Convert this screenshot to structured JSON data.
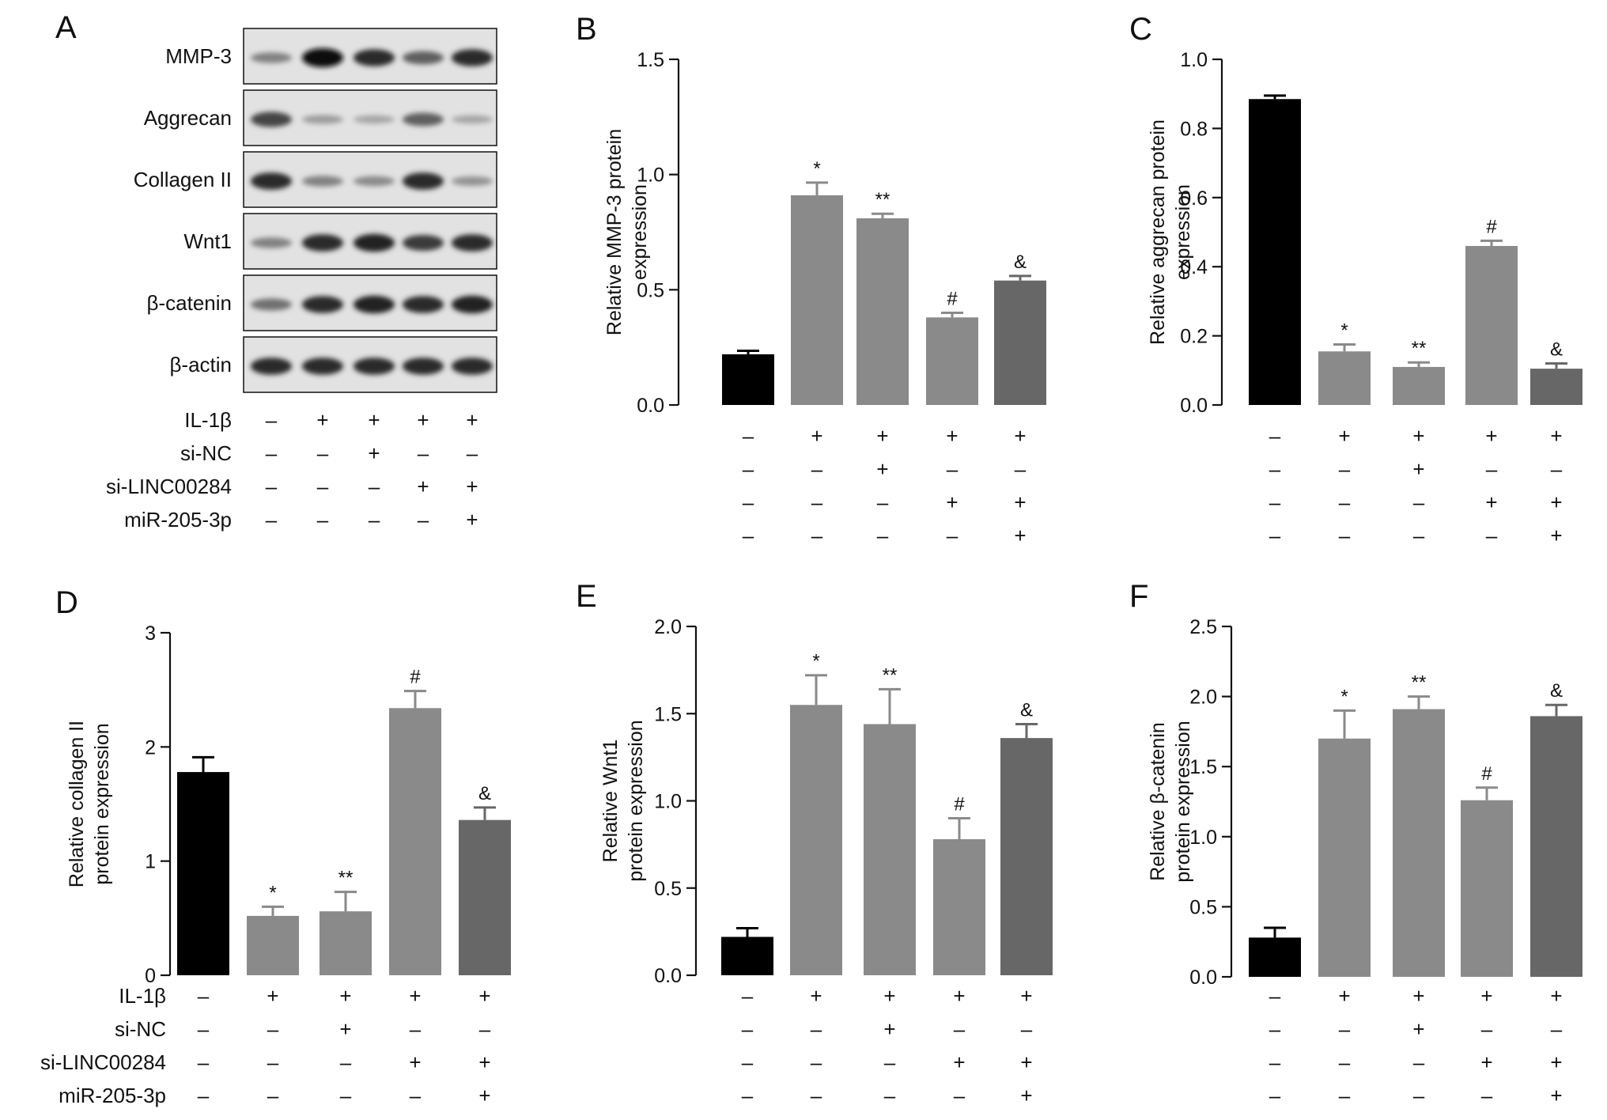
{
  "figure": {
    "colors": {
      "black": "#000000",
      "gray": "#8a8a8a",
      "dark_gray": "#676767",
      "axis": "#111111",
      "blot_bg": "#e2e2e2"
    }
  },
  "blot": {
    "letter": "A",
    "rows": [
      {
        "label": "MMP-3",
        "intensity": [
          0.35,
          1.0,
          0.85,
          0.55,
          0.85
        ]
      },
      {
        "label": "Aggrecan",
        "intensity": [
          0.7,
          0.2,
          0.15,
          0.55,
          0.15
        ]
      },
      {
        "label": "Collagen II",
        "intensity": [
          0.85,
          0.35,
          0.3,
          0.85,
          0.25
        ]
      },
      {
        "label": "Wnt1",
        "intensity": [
          0.35,
          0.85,
          0.9,
          0.75,
          0.85
        ]
      },
      {
        "label": "β-catenin",
        "intensity": [
          0.45,
          0.85,
          0.9,
          0.85,
          0.9
        ]
      },
      {
        "label": "β-actin",
        "intensity": [
          0.85,
          0.85,
          0.85,
          0.85,
          0.85
        ]
      }
    ],
    "condition_labels": [
      "IL-1β",
      "si-NC",
      "si-LINC00284",
      "miR-205-3p"
    ],
    "conditions": [
      [
        "–",
        "+",
        "+",
        "+",
        "+"
      ],
      [
        "–",
        "–",
        "+",
        "–",
        "–"
      ],
      [
        "–",
        "–",
        "–",
        "+",
        "+"
      ],
      [
        "–",
        "–",
        "–",
        "–",
        "+"
      ]
    ]
  },
  "chart_data": [
    {
      "letter": "B",
      "type": "bar",
      "ylabel_lines": [
        "Relative MMP-3 protein",
        "expression"
      ],
      "ylim": [
        0,
        1.5
      ],
      "yticks": [
        "0.0",
        "0.5",
        "1.0",
        "1.5"
      ],
      "values": [
        0.22,
        0.91,
        0.81,
        0.38,
        0.54
      ],
      "errors": [
        0.015,
        0.055,
        0.02,
        0.02,
        0.02
      ],
      "annotations": [
        "",
        "*",
        "**",
        "#",
        "&"
      ],
      "bar_colors": [
        "black",
        "gray",
        "gray",
        "gray",
        "dark_gray"
      ],
      "condition_labels": [],
      "conditions": [
        [
          "–",
          "+",
          "+",
          "+",
          "+"
        ],
        [
          "–",
          "–",
          "+",
          "–",
          "–"
        ],
        [
          "–",
          "–",
          "–",
          "+",
          "+"
        ],
        [
          "–",
          "–",
          "–",
          "–",
          "+"
        ]
      ]
    },
    {
      "letter": "C",
      "type": "bar",
      "ylabel_lines": [
        "Relative aggrecan protein",
        "expression"
      ],
      "ylim": [
        0,
        1.0
      ],
      "yticks": [
        "0.0",
        "0.2",
        "0.4",
        "0.6",
        "0.8",
        "1.0"
      ],
      "values": [
        0.885,
        0.155,
        0.11,
        0.46,
        0.105
      ],
      "errors": [
        0.01,
        0.02,
        0.013,
        0.015,
        0.015
      ],
      "annotations": [
        "",
        "*",
        "**",
        "#",
        "&"
      ],
      "bar_colors": [
        "black",
        "gray",
        "gray",
        "gray",
        "dark_gray"
      ],
      "condition_labels": [],
      "conditions": [
        [
          "–",
          "+",
          "+",
          "+",
          "+"
        ],
        [
          "–",
          "–",
          "+",
          "–",
          "–"
        ],
        [
          "–",
          "–",
          "–",
          "+",
          "+"
        ],
        [
          "–",
          "–",
          "–",
          "–",
          "+"
        ]
      ]
    },
    {
      "letter": "D",
      "type": "bar",
      "ylabel_lines": [
        "Relative collagen II",
        "protein expression"
      ],
      "ylim": [
        0,
        3
      ],
      "yticks": [
        "0",
        "1",
        "2",
        "3"
      ],
      "values": [
        1.78,
        0.52,
        0.56,
        2.34,
        1.36
      ],
      "errors": [
        0.13,
        0.08,
        0.17,
        0.15,
        0.11
      ],
      "annotations": [
        "",
        "*",
        "**",
        "#",
        "&"
      ],
      "bar_colors": [
        "black",
        "gray",
        "gray",
        "gray",
        "dark_gray"
      ],
      "condition_labels": [
        "IL-1β",
        "si-NC",
        "si-LINC00284",
        "miR-205-3p"
      ],
      "conditions": [
        [
          "–",
          "+",
          "+",
          "+",
          "+"
        ],
        [
          "–",
          "–",
          "+",
          "–",
          "–"
        ],
        [
          "–",
          "–",
          "–",
          "+",
          "+"
        ],
        [
          "–",
          "–",
          "–",
          "–",
          "+"
        ]
      ]
    },
    {
      "letter": "E",
      "type": "bar",
      "ylabel_lines": [
        "Relative Wnt1",
        "protein expression"
      ],
      "ylim": [
        0,
        2.0
      ],
      "yticks": [
        "0.0",
        "0.5",
        "1.0",
        "1.5",
        "2.0"
      ],
      "values": [
        0.22,
        1.55,
        1.44,
        0.78,
        1.36
      ],
      "errors": [
        0.05,
        0.17,
        0.2,
        0.12,
        0.08
      ],
      "annotations": [
        "",
        "*",
        "**",
        "#",
        "&"
      ],
      "bar_colors": [
        "black",
        "gray",
        "gray",
        "gray",
        "dark_gray"
      ],
      "condition_labels": [],
      "conditions": [
        [
          "–",
          "+",
          "+",
          "+",
          "+"
        ],
        [
          "–",
          "–",
          "+",
          "–",
          "–"
        ],
        [
          "–",
          "–",
          "–",
          "+",
          "+"
        ],
        [
          "–",
          "–",
          "–",
          "–",
          "+"
        ]
      ]
    },
    {
      "letter": "F",
      "type": "bar",
      "ylabel_lines": [
        "Relative β-catenin",
        "protein expression"
      ],
      "ylim": [
        0,
        2.5
      ],
      "yticks": [
        "0.0",
        "0.5",
        "1.0",
        "1.5",
        "2.0",
        "2.5"
      ],
      "values": [
        0.28,
        1.7,
        1.91,
        1.26,
        1.86
      ],
      "errors": [
        0.07,
        0.2,
        0.09,
        0.09,
        0.08
      ],
      "annotations": [
        "",
        "*",
        "**",
        "#",
        "&"
      ],
      "bar_colors": [
        "black",
        "gray",
        "gray",
        "gray",
        "dark_gray"
      ],
      "condition_labels": [],
      "conditions": [
        [
          "–",
          "+",
          "+",
          "+",
          "+"
        ],
        [
          "–",
          "–",
          "+",
          "–",
          "–"
        ],
        [
          "–",
          "–",
          "–",
          "+",
          "+"
        ],
        [
          "–",
          "–",
          "–",
          "–",
          "+"
        ]
      ]
    }
  ]
}
